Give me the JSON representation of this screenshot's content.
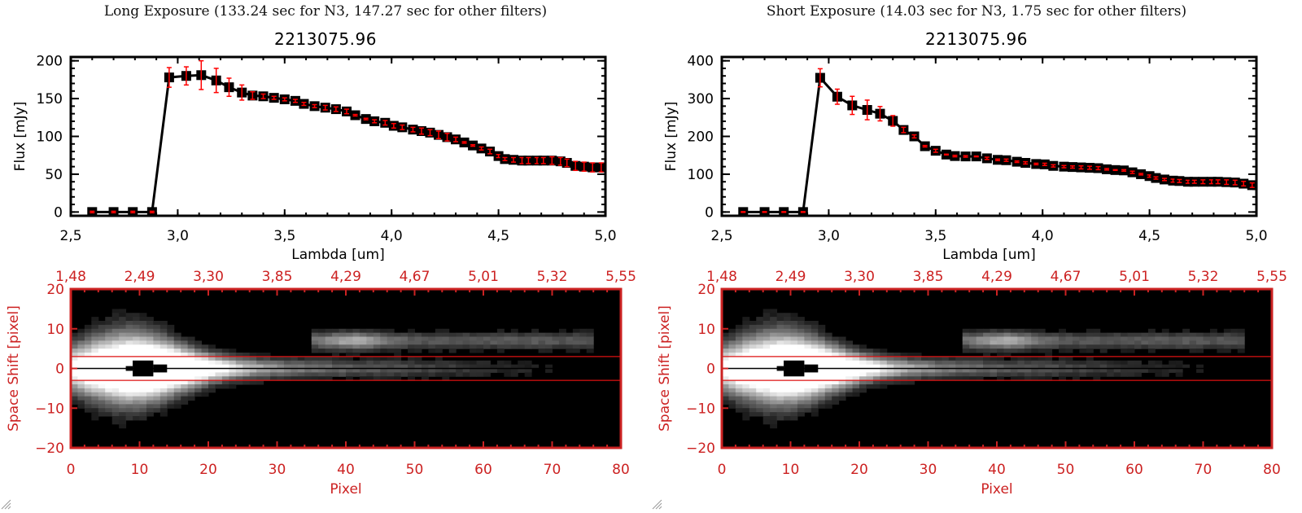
{
  "chart_data": [
    {
      "panel": "long",
      "exposure_title": "Long Exposure (133.24 sec for N3, 147.27 sec for other filters)",
      "spectrum": {
        "type": "line",
        "title": "2213075.96",
        "xlabel": "Lambda [um]",
        "ylabel": "Flux [mJy]",
        "xlim": [
          2.5,
          5.0
        ],
        "ylim": [
          -5,
          205
        ],
        "xticks": [
          "2.5",
          "3.0",
          "3.5",
          "4.0",
          "4.5",
          "5.0"
        ],
        "yticks": [
          "0",
          "50",
          "100",
          "150",
          "200"
        ],
        "line_color": "#000000",
        "errorbar_color": "#ff0000",
        "x": [
          2.6,
          2.7,
          2.79,
          2.88,
          2.96,
          3.04,
          3.11,
          3.18,
          3.24,
          3.3,
          3.35,
          3.4,
          3.45,
          3.5,
          3.55,
          3.59,
          3.64,
          3.69,
          3.74,
          3.79,
          3.83,
          3.88,
          3.92,
          3.97,
          4.01,
          4.05,
          4.1,
          4.14,
          4.18,
          4.22,
          4.26,
          4.3,
          4.34,
          4.38,
          4.42,
          4.46,
          4.5,
          4.53,
          4.57,
          4.61,
          4.64,
          4.68,
          4.71,
          4.75,
          4.79,
          4.82,
          4.86,
          4.9,
          4.94,
          4.98
        ],
        "y": [
          0,
          0,
          0,
          0,
          178,
          180,
          181,
          174,
          165,
          158,
          154,
          153,
          151,
          149,
          147,
          143,
          140,
          138,
          136,
          133,
          128,
          123,
          120,
          118,
          114,
          112,
          109,
          107,
          105,
          102,
          99,
          96,
          92,
          88,
          84,
          80,
          74,
          70,
          69,
          68,
          68,
          68,
          68,
          68,
          67,
          65,
          61,
          60,
          59,
          59
        ],
        "yerr": [
          1,
          1,
          1,
          1,
          13,
          12,
          19,
          16,
          12,
          10,
          5,
          3,
          2,
          2,
          2,
          2,
          2,
          3,
          3,
          3,
          1,
          1,
          2,
          3,
          3,
          3,
          3,
          4,
          4,
          5,
          5,
          3,
          1,
          1,
          2,
          3,
          2,
          2,
          3,
          4,
          4,
          4,
          4,
          5,
          5,
          5,
          6,
          6,
          6,
          6
        ]
      },
      "image": {
        "type": "heatmap",
        "xlabel": "Pixel",
        "ylabel": "Space Shift [pixel]",
        "xlim": [
          0,
          80
        ],
        "ylim": [
          -20,
          20
        ],
        "xticks": [
          "0",
          "10",
          "20",
          "30",
          "40",
          "50",
          "60",
          "70",
          "80"
        ],
        "yticks": [
          "-20",
          "-10",
          "0",
          "10",
          "20"
        ],
        "top_xticks": [
          "1.48",
          "2.49",
          "3.30",
          "3.85",
          "4.29",
          "4.67",
          "5.01",
          "5.32",
          "5.55"
        ],
        "aperture_lines": [
          3,
          -3
        ],
        "center_line": 0,
        "axis_color": "#cc2222",
        "aperture_color": "#dd1111"
      }
    },
    {
      "panel": "short",
      "exposure_title": "Short Exposure (14.03 sec for N3, 1.75 sec for other filters)",
      "spectrum": {
        "type": "line",
        "title": "2213075.96",
        "xlabel": "Lambda [um]",
        "ylabel": "Flux [mJy]",
        "xlim": [
          2.5,
          5.0
        ],
        "ylim": [
          -10,
          410
        ],
        "xticks": [
          "2.5",
          "3.0",
          "3.5",
          "4.0",
          "4.5",
          "5.0"
        ],
        "yticks": [
          "0",
          "100",
          "200",
          "300",
          "400"
        ],
        "line_color": "#000000",
        "errorbar_color": "#ff0000",
        "x": [
          2.6,
          2.7,
          2.79,
          2.88,
          2.96,
          3.04,
          3.11,
          3.18,
          3.24,
          3.3,
          3.35,
          3.4,
          3.45,
          3.5,
          3.55,
          3.59,
          3.64,
          3.69,
          3.74,
          3.79,
          3.83,
          3.88,
          3.92,
          3.97,
          4.01,
          4.05,
          4.1,
          4.14,
          4.18,
          4.22,
          4.26,
          4.3,
          4.34,
          4.38,
          4.42,
          4.46,
          4.5,
          4.53,
          4.57,
          4.61,
          4.64,
          4.68,
          4.71,
          4.75,
          4.79,
          4.82,
          4.86,
          4.9,
          4.94,
          4.98
        ],
        "y": [
          0,
          0,
          0,
          0,
          355,
          305,
          282,
          270,
          260,
          241,
          217,
          200,
          174,
          162,
          152,
          148,
          147,
          147,
          142,
          138,
          137,
          133,
          130,
          127,
          126,
          122,
          120,
          119,
          118,
          117,
          116,
          113,
          111,
          110,
          105,
          100,
          95,
          90,
          86,
          83,
          82,
          80,
          80,
          80,
          80,
          80,
          79,
          78,
          75,
          71
        ],
        "yerr": [
          1,
          1,
          1,
          1,
          24,
          20,
          24,
          26,
          19,
          14,
          7,
          4,
          2,
          4,
          1,
          2,
          2,
          1,
          3,
          2,
          3,
          2,
          3,
          2,
          3,
          3,
          3,
          3,
          4,
          4,
          4,
          2,
          1,
          2,
          3,
          2,
          3,
          3,
          3,
          4,
          4,
          4,
          4,
          5,
          5,
          5,
          6,
          6,
          6,
          6
        ]
      },
      "image": {
        "type": "heatmap",
        "xlabel": "Pixel",
        "ylabel": "Space Shift [pixel]",
        "xlim": [
          0,
          80
        ],
        "ylim": [
          -20,
          20
        ],
        "xticks": [
          "0",
          "10",
          "20",
          "30",
          "40",
          "50",
          "60",
          "70",
          "80"
        ],
        "yticks": [
          "-20",
          "-10",
          "0",
          "10",
          "20"
        ],
        "top_xticks": [
          "1.48",
          "2.49",
          "3.30",
          "3.85",
          "4.29",
          "4.67",
          "5.01",
          "5.32",
          "5.55"
        ],
        "aperture_lines": [
          3,
          -3
        ],
        "center_line": 0,
        "axis_color": "#cc2222",
        "aperture_color": "#dd1111"
      }
    }
  ]
}
